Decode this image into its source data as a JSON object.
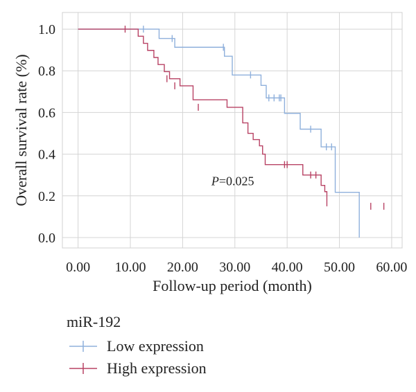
{
  "chart_data": {
    "type": "line",
    "step": true,
    "xlabel": "Follow-up period (month)",
    "ylabel": "Overall survival rate (%)",
    "xlim": [
      -3,
      62
    ],
    "ylim": [
      -0.05,
      1.08
    ],
    "xticks": [
      "0.00",
      "10.00",
      "20.00",
      "30.00",
      "40.00",
      "50.00",
      "60.00"
    ],
    "xtick_values": [
      0,
      10,
      20,
      30,
      40,
      50,
      60
    ],
    "yticks": [
      "0.0",
      "0.2",
      "0.4",
      "0.6",
      "0.8",
      "1.0"
    ],
    "ytick_values": [
      0,
      0.2,
      0.4,
      0.6,
      0.8,
      1.0
    ],
    "grid": true,
    "annotation": {
      "italic": "P",
      "rest": "=0.025",
      "x": 25.5,
      "y": 0.25
    },
    "legend_title": "miR-192",
    "series": [
      {
        "name": "Low expression",
        "color": "#8fb0dc",
        "x": [
          0,
          15.5,
          18.5,
          28.0,
          29.5,
          35.0,
          36.0,
          39.5,
          42.5,
          46.5,
          49.2,
          53.8
        ],
        "y": [
          1.0,
          0.955,
          0.913,
          0.87,
          0.78,
          0.73,
          0.67,
          0.596,
          0.52,
          0.435,
          0.217,
          0.0
        ],
        "censors": [
          [
            12.5,
            1.0
          ],
          [
            18.0,
            0.955
          ],
          [
            27.8,
            0.913
          ],
          [
            33.0,
            0.78
          ],
          [
            36.5,
            0.67
          ],
          [
            37.5,
            0.67
          ],
          [
            38.5,
            0.67
          ],
          [
            38.8,
            0.67
          ],
          [
            44.5,
            0.52
          ],
          [
            47.5,
            0.435
          ],
          [
            48.5,
            0.435
          ]
        ]
      },
      {
        "name": "High expression",
        "color": "#b84264",
        "x": [
          0,
          11.5,
          12.5,
          13.3,
          14.5,
          15.3,
          16.5,
          17.5,
          19.5,
          22.0,
          28.5,
          31.5,
          32.5,
          33.5,
          34.7,
          35.3,
          35.8,
          39.5,
          43.0,
          46.5,
          47.2,
          47.6
        ],
        "y": [
          1.0,
          0.966,
          0.932,
          0.898,
          0.864,
          0.83,
          0.796,
          0.762,
          0.728,
          0.661,
          0.625,
          0.55,
          0.5,
          0.47,
          0.44,
          0.4,
          0.35,
          0.35,
          0.3,
          0.25,
          0.22,
          0.15
        ],
        "censors": [
          [
            9.0,
            1.0
          ],
          [
            17.0,
            0.762
          ],
          [
            18.5,
            0.728
          ],
          [
            23.0,
            0.625
          ],
          [
            39.5,
            0.35
          ],
          [
            40.0,
            0.35
          ],
          [
            44.5,
            0.3
          ],
          [
            45.5,
            0.3
          ],
          [
            56.0,
            0.15
          ],
          [
            58.5,
            0.15
          ]
        ]
      }
    ]
  }
}
